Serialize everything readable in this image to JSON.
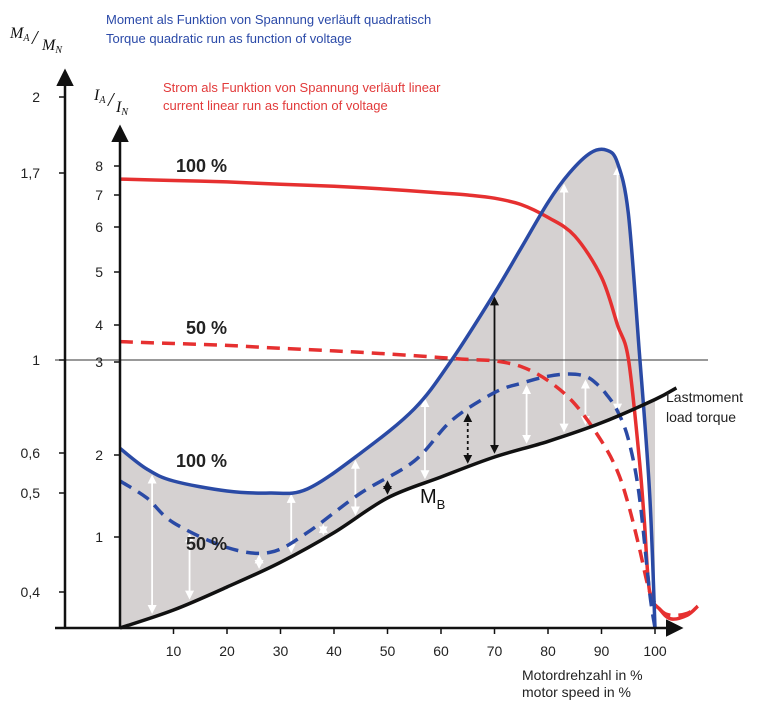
{
  "chart_data": {
    "type": "line",
    "title_lines": [
      {
        "text": "Moment als Funktion von Spannung verläuft quadratisch",
        "color": "#2b4aa8"
      },
      {
        "text": "Torque quadratic run as function of voltage",
        "color": "#2b4aa8"
      },
      {
        "text": "Strom als Funktion von Spannung verläuft linear",
        "color": "#e23a3a"
      },
      {
        "text": "current linear run as function of voltage",
        "color": "#e23a3a"
      }
    ],
    "axes": {
      "torque_axis": {
        "label_num": "M",
        "label_num_sub": "A",
        "label_den": "M",
        "label_den_sub": "N",
        "ticks": [
          {
            "label": "2",
            "value": 2
          },
          {
            "label": "1,7",
            "value": 1.7
          },
          {
            "label": "1",
            "value": 1
          },
          {
            "label": "0,6",
            "value": 0.6
          },
          {
            "label": "0,5",
            "value": 0.5
          },
          {
            "label": "0,4",
            "value": 0.4
          }
        ]
      },
      "current_axis": {
        "label_num": "I",
        "label_num_sub": "A",
        "label_den": "I",
        "label_den_sub": "N",
        "ticks": [
          {
            "label": "8",
            "value": 8
          },
          {
            "label": "7",
            "value": 7
          },
          {
            "label": "6",
            "value": 6
          },
          {
            "label": "5",
            "value": 5
          },
          {
            "label": "4",
            "value": 4
          },
          {
            "label": "3",
            "value": 3
          },
          {
            "label": "2",
            "value": 2
          },
          {
            "label": "1",
            "value": 1
          }
        ]
      },
      "x_axis": {
        "label_lines": [
          "Motordrehzahl in %",
          "motor speed in %"
        ],
        "ticks": [
          10,
          20,
          30,
          40,
          50,
          60,
          70,
          80,
          90,
          100
        ],
        "xlim": [
          0,
          105
        ]
      }
    },
    "labels": {
      "current_100": "100 %",
      "current_50": "50 %",
      "torque_100": "100 %",
      "torque_50": "50 %",
      "accel_torque_main": "M",
      "accel_torque_sub": "B",
      "load_line1": "Lastmoment",
      "load_line2": "load torque"
    },
    "series": [
      {
        "key": "current_100",
        "color": "#e63030",
        "style": "solid",
        "x": [
          0,
          10,
          20,
          30,
          40,
          50,
          60,
          65,
          70,
          75,
          80,
          85,
          90,
          93,
          95,
          97,
          98,
          99,
          101,
          103,
          106,
          108
        ],
        "y_current": [
          7.55,
          7.5,
          7.45,
          7.37,
          7.3,
          7.2,
          7.07,
          7.0,
          6.9,
          6.7,
          6.3,
          5.8,
          4.9,
          4.0,
          3.1,
          2.0,
          1.2,
          0.7,
          0.6,
          0.55,
          0.57,
          0.62
        ]
      },
      {
        "key": "current_50",
        "color": "#e63030",
        "style": "dashed",
        "x": [
          0,
          10,
          20,
          30,
          40,
          50,
          60,
          65,
          70,
          75,
          80,
          85,
          90,
          93,
          95,
          97,
          99,
          101,
          103,
          106,
          108
        ],
        "y_current": [
          3.55,
          3.5,
          3.45,
          3.37,
          3.3,
          3.22,
          3.12,
          3.07,
          3.03,
          2.95,
          2.8,
          2.55,
          2.15,
          1.8,
          1.4,
          0.95,
          0.7,
          0.6,
          0.57,
          0.58,
          0.62
        ]
      },
      {
        "key": "torque_100",
        "color": "#2a4aa5",
        "style": "solid",
        "x": [
          0,
          5,
          10,
          20,
          28,
          35,
          45,
          55,
          62,
          70,
          75,
          80,
          84,
          88,
          91,
          93,
          95,
          97,
          99,
          100
        ],
        "y_torque": [
          0.62,
          0.56,
          0.53,
          0.505,
          0.5,
          0.51,
          0.6,
          0.79,
          1.0,
          1.25,
          1.42,
          1.59,
          1.7,
          1.78,
          1.79,
          1.74,
          1.55,
          1.05,
          0.5,
          0.37
        ]
      },
      {
        "key": "torque_50",
        "color": "#2a4aa5",
        "style": "dashed",
        "x": [
          0,
          5,
          10,
          20,
          28,
          35,
          45,
          55,
          62,
          70,
          75,
          80,
          84,
          87,
          89,
          91,
          93,
          95,
          97,
          99,
          100
        ],
        "y_torque": [
          0.53,
          0.495,
          0.47,
          0.445,
          0.44,
          0.46,
          0.5,
          0.58,
          0.74,
          0.86,
          0.9,
          0.93,
          0.94,
          0.93,
          0.9,
          0.85,
          0.78,
          0.66,
          0.5,
          0.4,
          0.37
        ]
      },
      {
        "key": "load_torque",
        "color": "#111111",
        "style": "solid",
        "x": [
          0,
          10,
          20,
          30,
          40,
          50,
          60,
          70,
          80,
          90,
          100,
          104
        ],
        "y_torque": [
          0.37,
          0.385,
          0.405,
          0.43,
          0.46,
          0.495,
          0.54,
          0.59,
          0.65,
          0.73,
          0.83,
          0.88
        ]
      }
    ],
    "arrows": [
      {
        "x": 6,
        "to": "torque_100",
        "color": "#ffffff",
        "style": "solid"
      },
      {
        "x": 13,
        "to": "torque_50",
        "color": "#ffffff",
        "style": "solid"
      },
      {
        "x": 26,
        "to": "torque_50",
        "color": "#ffffff",
        "style": "solid"
      },
      {
        "x": 32,
        "to": "torque_100",
        "color": "#ffffff",
        "style": "solid"
      },
      {
        "x": 38,
        "to": "torque_50",
        "color": "#ffffff",
        "style": "solid"
      },
      {
        "x": 44,
        "to": "torque_100",
        "color": "#ffffff",
        "style": "solid"
      },
      {
        "x": 50,
        "to": "torque_50",
        "color": "#111111",
        "style": "solid"
      },
      {
        "x": 57,
        "to": "torque_100",
        "color": "#ffffff",
        "style": "solid"
      },
      {
        "x": 65,
        "to": "torque_50",
        "color": "#111111",
        "style": "dotted"
      },
      {
        "x": 70,
        "to": "torque_100",
        "color": "#111111",
        "style": "solid"
      },
      {
        "x": 76,
        "to": "torque_50",
        "color": "#ffffff",
        "style": "solid"
      },
      {
        "x": 83,
        "to": "torque_100",
        "color": "#ffffff",
        "style": "solid"
      },
      {
        "x": 87,
        "to": "torque_50",
        "color": "#ffffff",
        "style": "solid"
      },
      {
        "x": 93,
        "to": "torque_100",
        "color": "#ffffff",
        "style": "solid"
      }
    ],
    "reference_line_torque": 1,
    "fill_color": "#d5d1d1"
  }
}
